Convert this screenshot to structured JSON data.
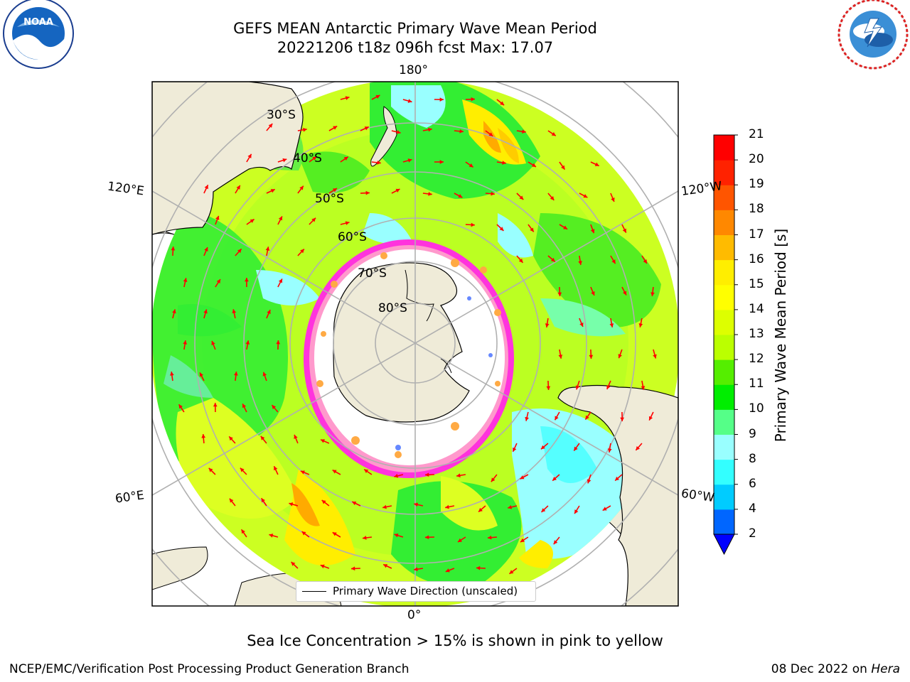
{
  "header": {
    "title_line1": "GEFS MEAN Antarctic Primary Wave Mean Period",
    "title_line2": "20221206 t18z 096h fcst   Max: 17.07"
  },
  "logos": {
    "noaa": {
      "text": "NOAA",
      "ring_text": "NATIONAL OCEANIC AND ATMOSPHERIC ADMINISTRATION · U.S. DEPARTMENT OF COMMERCE"
    },
    "nws": {
      "ring_text": "NATIONAL WEATHER SERVICE"
    }
  },
  "map": {
    "projection": "south polar stereographic",
    "longitude_labels": {
      "top": "180°",
      "bottom": "0°",
      "upper_left": "120°E",
      "upper_right": "120°W",
      "lower_left": "60°E",
      "lower_right": "60°W"
    },
    "latitude_labels": [
      "30°S",
      "40°S",
      "50°S",
      "60°S",
      "70°S",
      "80°S"
    ],
    "legend": "Primary Wave Direction (unscaled)",
    "colors": {
      "land": "#efebd8",
      "coastline": "#000000",
      "gridlines": "#b0b0b0",
      "arrows": "#ff0000",
      "sea_ice": "#ff33dd"
    }
  },
  "colorbar": {
    "label": "Primary Wave Mean Period [s]",
    "ticks": [
      "2",
      "4",
      "6",
      "8",
      "9",
      "10",
      "11",
      "12",
      "13",
      "14",
      "15",
      "16",
      "17",
      "18",
      "19",
      "20",
      "21"
    ],
    "colors": [
      "#0066ff",
      "#00ccff",
      "#33ffff",
      "#99ffff",
      "#55ff88",
      "#00ee00",
      "#55ee00",
      "#bbff00",
      "#ddff00",
      "#ffff00",
      "#ffee00",
      "#ffbb00",
      "#ff8800",
      "#ff5500",
      "#ff2200",
      "#ff0000"
    ],
    "extend_color": "#0000ff"
  },
  "footer": {
    "subtitle": "Sea Ice Concentration > 15% is shown in pink to yellow",
    "left": "NCEP/EMC/Verification Post Processing Product Generation Branch",
    "date": "08 Dec 2022 on",
    "host": "Hera"
  }
}
